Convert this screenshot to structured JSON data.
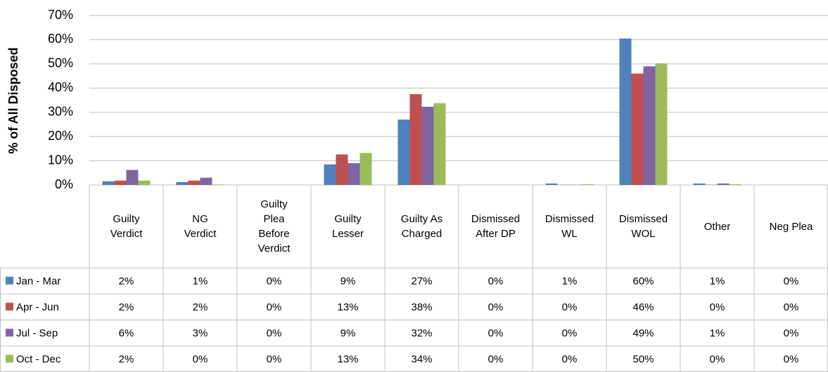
{
  "chart_data": {
    "type": "bar",
    "y_label": "% of All Disposed",
    "categories": [
      "Guilty Verdict",
      "NG Verdict",
      "Guilty Plea Before Verdict",
      "Guilty Lesser",
      "Guilty As Charged",
      "Dismissed After DP",
      "Dismissed WL",
      "Dismissed WOL",
      "Other",
      "Neg Plea"
    ],
    "series": [
      {
        "name": "Jan - Mar",
        "color": "#4f81bd",
        "values": [
          1.5,
          1.2,
          0,
          8.5,
          27,
          0,
          0.6,
          60.5,
          0.6,
          0
        ],
        "value_labels": [
          "2%",
          "1%",
          "0%",
          "9%",
          "27%",
          "0%",
          "1%",
          "60%",
          "1%",
          "0%"
        ]
      },
      {
        "name": "Apr - Jun",
        "color": "#c0504d",
        "values": [
          1.8,
          1.8,
          0,
          12.6,
          37.5,
          0,
          0.1,
          46,
          0.1,
          0
        ],
        "value_labels": [
          "2%",
          "2%",
          "0%",
          "13%",
          "38%",
          "0%",
          "0%",
          "46%",
          "0%",
          "0%"
        ]
      },
      {
        "name": "Jul - Sep",
        "color": "#8064a2",
        "values": [
          6.2,
          3,
          0,
          9,
          32.3,
          0,
          0.1,
          49,
          0.6,
          0
        ],
        "value_labels": [
          "6%",
          "3%",
          "0%",
          "9%",
          "32%",
          "0%",
          "0%",
          "49%",
          "1%",
          "0%"
        ]
      },
      {
        "name": "Oct - Dec",
        "color": "#9bbb59",
        "values": [
          1.8,
          0.2,
          0,
          13.2,
          33.8,
          0,
          0.3,
          50.2,
          0.3,
          0
        ],
        "value_labels": [
          "2%",
          "0%",
          "0%",
          "13%",
          "34%",
          "0%",
          "0%",
          "50%",
          "0%",
          "0%"
        ]
      }
    ],
    "ylim": [
      0,
      70
    ],
    "yticks": [
      {
        "value": 0,
        "label": "0%"
      },
      {
        "value": 10,
        "label": "10%"
      },
      {
        "value": 20,
        "label": "20%"
      },
      {
        "value": 30,
        "label": "30%"
      },
      {
        "value": 40,
        "label": "40%"
      },
      {
        "value": 50,
        "label": "50%"
      },
      {
        "value": 60,
        "label": "60%"
      },
      {
        "value": 70,
        "label": "70%"
      }
    ],
    "grid": true
  }
}
